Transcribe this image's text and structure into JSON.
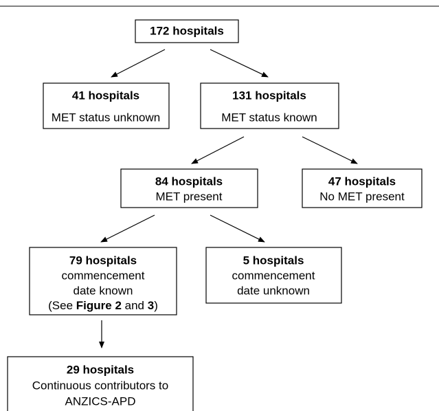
{
  "nodes": [
    {
      "title": "172 hospitals",
      "lines": []
    },
    {
      "title": "41 hospitals",
      "lines": [
        "MET status unknown"
      ]
    },
    {
      "title": "131 hospitals",
      "lines": [
        "MET status known"
      ]
    },
    {
      "title": "84 hospitals",
      "lines": [
        "MET present"
      ]
    },
    {
      "title": "47 hospitals",
      "lines": [
        "No MET present"
      ]
    },
    {
      "title": "79 hospitals",
      "lines": [
        "commencement",
        "date known"
      ],
      "note": [
        "(See ",
        "Figure 2",
        " and ",
        "3",
        ")"
      ]
    },
    {
      "title": "5 hospitals",
      "lines": [
        "commencement",
        "date unknown"
      ]
    },
    {
      "title": "29 hospitals",
      "lines": [
        "Continuous contributors to",
        "ANZICS-APD"
      ]
    }
  ]
}
